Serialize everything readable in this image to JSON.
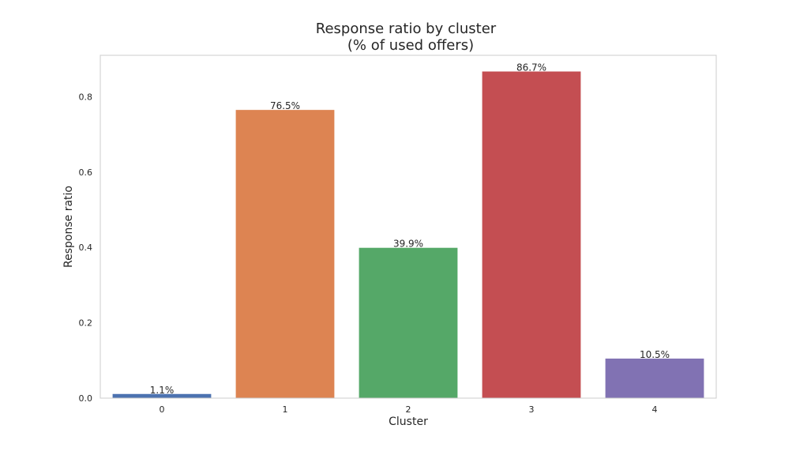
{
  "chart_data": {
    "type": "bar",
    "title": [
      "Response ratio by cluster",
      "(% of used offers)"
    ],
    "xlabel": "Cluster",
    "ylabel": "Response ratio",
    "categories": [
      "0",
      "1",
      "2",
      "3",
      "4"
    ],
    "values": [
      0.011,
      0.765,
      0.399,
      0.867,
      0.105
    ],
    "data_labels": [
      "1.1%",
      "76.5%",
      "39.9%",
      "86.7%",
      "10.5%"
    ],
    "colors": [
      "#4c72b0",
      "#dd8452",
      "#55a868",
      "#c44e52",
      "#8172b3"
    ],
    "yticks": [
      0.0,
      0.2,
      0.4,
      0.6,
      0.8
    ],
    "ytick_labels": [
      "0.0",
      "0.2",
      "0.4",
      "0.6",
      "0.8"
    ],
    "ylim": [
      0,
      0.91
    ],
    "grid": false,
    "legend": "none"
  }
}
